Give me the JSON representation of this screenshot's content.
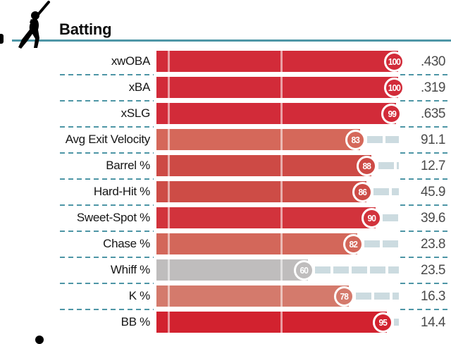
{
  "header": {
    "title": "Batting",
    "icon": "batter-icon"
  },
  "colors": {
    "accent_teal": "#4e96a6",
    "track_remainder": "#ccdbe0",
    "value_text": "#4a4a4a",
    "label_text": "#161616",
    "gray_percentile": "#bfbdbd"
  },
  "chart_data": {
    "type": "bar",
    "orientation": "horizontal",
    "title": "Batting",
    "scale": {
      "min": 0,
      "max": 100,
      "gridlines_at": [
        0,
        50
      ]
    },
    "legend": "none",
    "categories": [
      "xwOBA",
      "xBA",
      "xSLG",
      "Avg Exit Velocity",
      "Barrel %",
      "Hard-Hit %",
      "Sweet-Spot %",
      "Chase %",
      "Whiff %",
      "K %",
      "BB %"
    ],
    "series": [
      {
        "name": "Percentile",
        "values": [
          100,
          100,
          99,
          83,
          88,
          86,
          90,
          82,
          60,
          78,
          95
        ]
      },
      {
        "name": "Stat Value",
        "values": [
          ".430",
          ".319",
          ".635",
          "91.1",
          "12.7",
          "45.9",
          "39.6",
          "23.8",
          "23.5",
          "16.3",
          "14.4"
        ]
      }
    ],
    "rows": [
      {
        "label": "xwOBA",
        "percentile": "100",
        "value": ".430",
        "color": "#d22b39"
      },
      {
        "label": "xBA",
        "percentile": "100",
        "value": ".319",
        "color": "#d22b39"
      },
      {
        "label": "xSLG",
        "percentile": "99",
        "value": ".635",
        "color": "#d22b39"
      },
      {
        "label": "Avg Exit Velocity",
        "percentile": "83",
        "value": "91.1",
        "color": "#d5685a"
      },
      {
        "label": "Barrel %",
        "percentile": "88",
        "value": "12.7",
        "color": "#cd4a45"
      },
      {
        "label": "Hard-Hit %",
        "percentile": "86",
        "value": "45.9",
        "color": "#cd4c46"
      },
      {
        "label": "Sweet-Spot %",
        "percentile": "90",
        "value": "39.6",
        "color": "#d2333c"
      },
      {
        "label": "Chase %",
        "percentile": "82",
        "value": "23.8",
        "color": "#d3675a"
      },
      {
        "label": "Whiff %",
        "percentile": "60",
        "value": "23.5",
        "color": "#bfbdbd"
      },
      {
        "label": "K %",
        "percentile": "78",
        "value": "16.3",
        "color": "#d47a6c"
      },
      {
        "label": "BB %",
        "percentile": "95",
        "value": "14.4",
        "color": "#d2222f"
      }
    ]
  }
}
